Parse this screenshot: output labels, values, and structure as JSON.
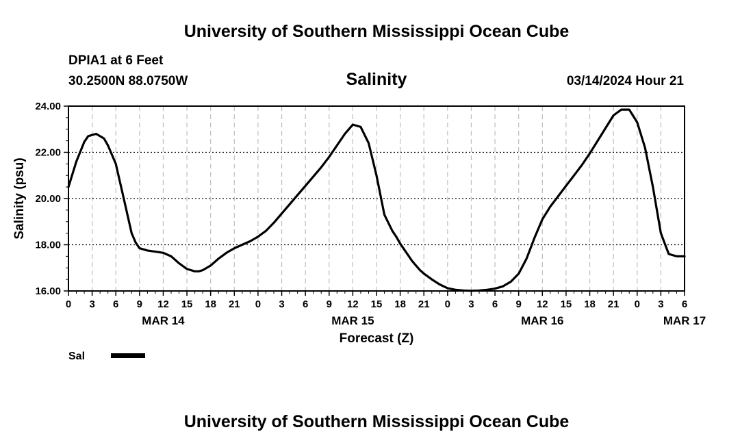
{
  "header": {
    "title": "University of Southern Mississippi Ocean Cube",
    "footer_title": "University of Southern Mississippi Ocean Cube",
    "station": "DPIA1 at 6 Feet",
    "location": "30.2500N  88.0750W",
    "timestamp": "03/14/2024 Hour 21"
  },
  "chart_data": {
    "type": "line",
    "title": "Salinity",
    "xlabel": "Forecast (Z)",
    "ylabel": "Salinity (psu)",
    "xlim": [
      0,
      78
    ],
    "ylim": [
      16,
      24
    ],
    "grid": true,
    "y_ticks": [
      "16.00",
      "18.00",
      "20.00",
      "22.00",
      "24.00"
    ],
    "y_tick_values": [
      16,
      18,
      20,
      22,
      24
    ],
    "x_tick_labels": [
      "0",
      "3",
      "6",
      "9",
      "12",
      "15",
      "18",
      "21",
      "0",
      "3",
      "6",
      "9",
      "12",
      "15",
      "18",
      "21",
      "0",
      "3",
      "6",
      "9",
      "12",
      "15",
      "18",
      "21",
      "0",
      "3",
      "6"
    ],
    "date_labels": [
      {
        "label": "MAR 14",
        "hour": 12
      },
      {
        "label": "MAR 15",
        "hour": 36
      },
      {
        "label": "MAR 16",
        "hour": 60
      },
      {
        "label": "MAR 17",
        "hour": 78
      }
    ],
    "legend": [
      {
        "name": "Sal",
        "color": "#000000"
      }
    ],
    "series": [
      {
        "name": "Sal",
        "color": "#000000",
        "x": [
          0,
          1,
          2,
          2.5,
          3,
          3.5,
          4,
          4.5,
          5,
          6,
          7,
          8,
          8.5,
          9,
          10,
          11,
          12,
          13,
          14,
          15,
          16,
          16.5,
          17,
          18,
          19,
          20,
          21,
          22,
          23,
          24,
          25,
          26,
          27,
          28,
          29,
          30,
          31,
          32,
          33,
          34,
          35,
          36,
          37,
          38,
          39,
          40,
          41,
          41.5,
          42,
          42.5,
          43,
          43.5,
          44,
          44.5,
          45,
          46,
          47,
          48,
          49,
          50,
          51,
          52,
          53,
          54,
          55,
          56,
          57,
          58,
          59,
          60,
          61,
          62,
          63,
          64,
          65,
          66,
          67,
          68,
          69,
          70,
          71,
          72,
          73,
          74,
          75,
          76,
          77,
          78
        ],
        "values": [
          20.5,
          21.6,
          22.45,
          22.7,
          22.75,
          22.8,
          22.7,
          22.6,
          22.3,
          21.5,
          20.0,
          18.5,
          18.1,
          17.85,
          17.75,
          17.7,
          17.65,
          17.5,
          17.2,
          16.95,
          16.85,
          16.85,
          16.9,
          17.1,
          17.4,
          17.65,
          17.85,
          18.0,
          18.15,
          18.35,
          18.6,
          18.95,
          19.35,
          19.75,
          20.15,
          20.55,
          20.95,
          21.35,
          21.8,
          22.3,
          22.8,
          23.2,
          23.1,
          22.4,
          21.0,
          19.3,
          18.6,
          18.35,
          18.05,
          17.8,
          17.55,
          17.3,
          17.1,
          16.9,
          16.75,
          16.5,
          16.28,
          16.12,
          16.05,
          16.02,
          16.01,
          16.02,
          16.05,
          16.1,
          16.2,
          16.4,
          16.75,
          17.4,
          18.3,
          19.1,
          19.65,
          20.1,
          20.55,
          21.0,
          21.45,
          21.95,
          22.5,
          23.05,
          23.6,
          23.85,
          23.85,
          23.3,
          22.2,
          20.5,
          18.5,
          17.6,
          17.5,
          17.5
        ]
      }
    ]
  }
}
